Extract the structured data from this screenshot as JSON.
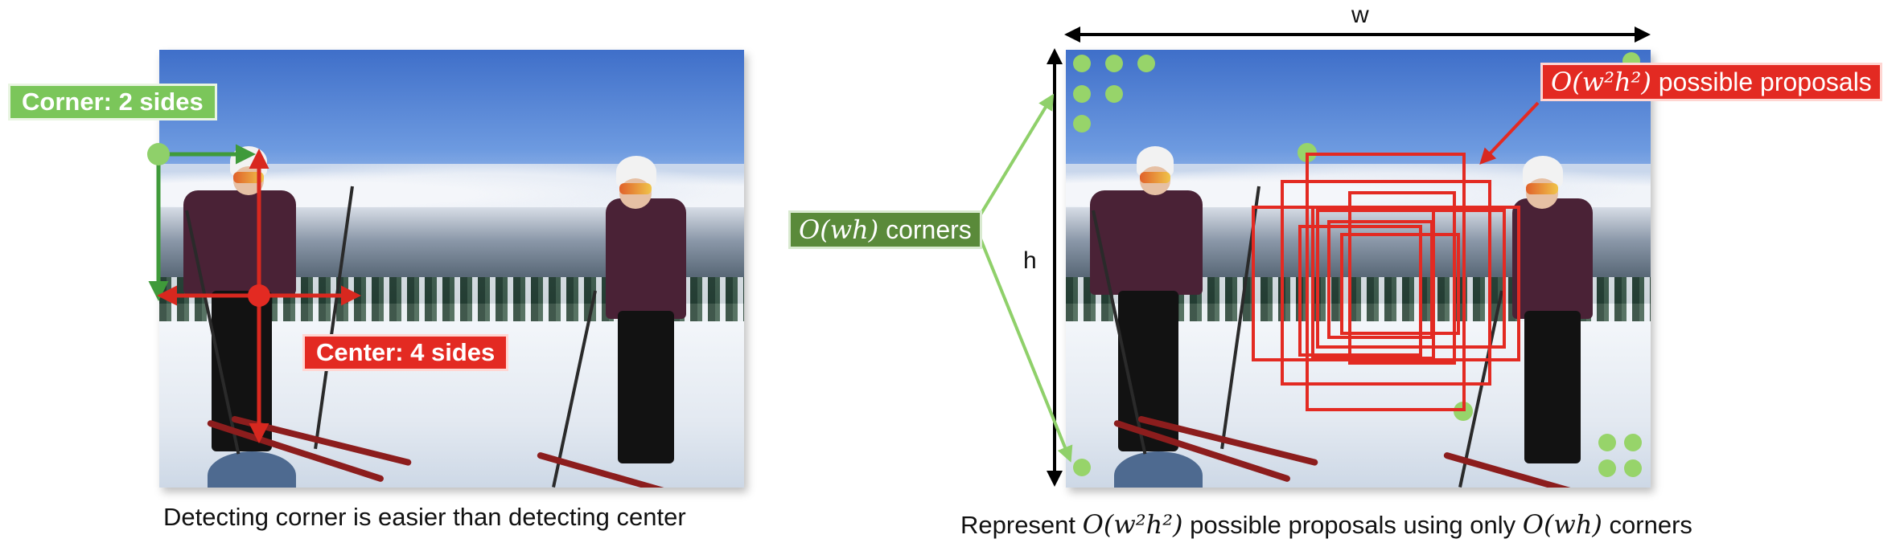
{
  "left_panel": {
    "corner_label": "Corner: 2 sides",
    "center_label": "Center: 4 sides",
    "caption": "Detecting corner is easier than detecting center",
    "colors": {
      "corner": "#7bc65a",
      "center": "#e32a22"
    }
  },
  "right_panel": {
    "width_label": "w",
    "height_label": "h",
    "corners_label_math": "O(wh)",
    "corners_label_text": " corners",
    "proposals_label_math": "O(w²h²)",
    "proposals_label_text": " possible proposals",
    "caption_parts": [
      "Represent ",
      "O(w²h²)",
      " possible proposals using only ",
      "O(wh)",
      " corners"
    ],
    "colors": {
      "corner_dots": "#97d46a",
      "proposal_boxes": "#e32a22",
      "corners_label": "#5a8a3a"
    }
  }
}
